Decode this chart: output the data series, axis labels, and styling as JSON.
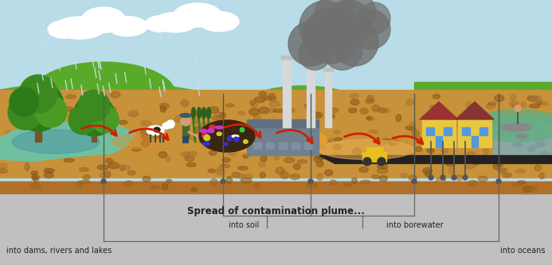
{
  "fig_width": 6.93,
  "fig_height": 3.33,
  "dpi": 100,
  "sky_color": "#b8dce8",
  "ground_top_color": "#c8923a",
  "ground_mid_color": "#b87830",
  "ground_deep_color": "#c0c0c0",
  "green_color": "#5aaa2a",
  "green_dark_color": "#3a8a1a",
  "water_color": "#70c0a0",
  "water_dark": "#4488aa",
  "plume_color": "#e8a030",
  "smoke_color": "#707070",
  "arrow_color": "#cc2200",
  "line_color": "#666666",
  "label_color": "#222222",
  "title_text": "Spread of contamination plume...",
  "label_dams": "into dams, rivers and lakes",
  "label_soil": "into soil",
  "label_bore": "into borewater",
  "label_oceans": "into oceans"
}
